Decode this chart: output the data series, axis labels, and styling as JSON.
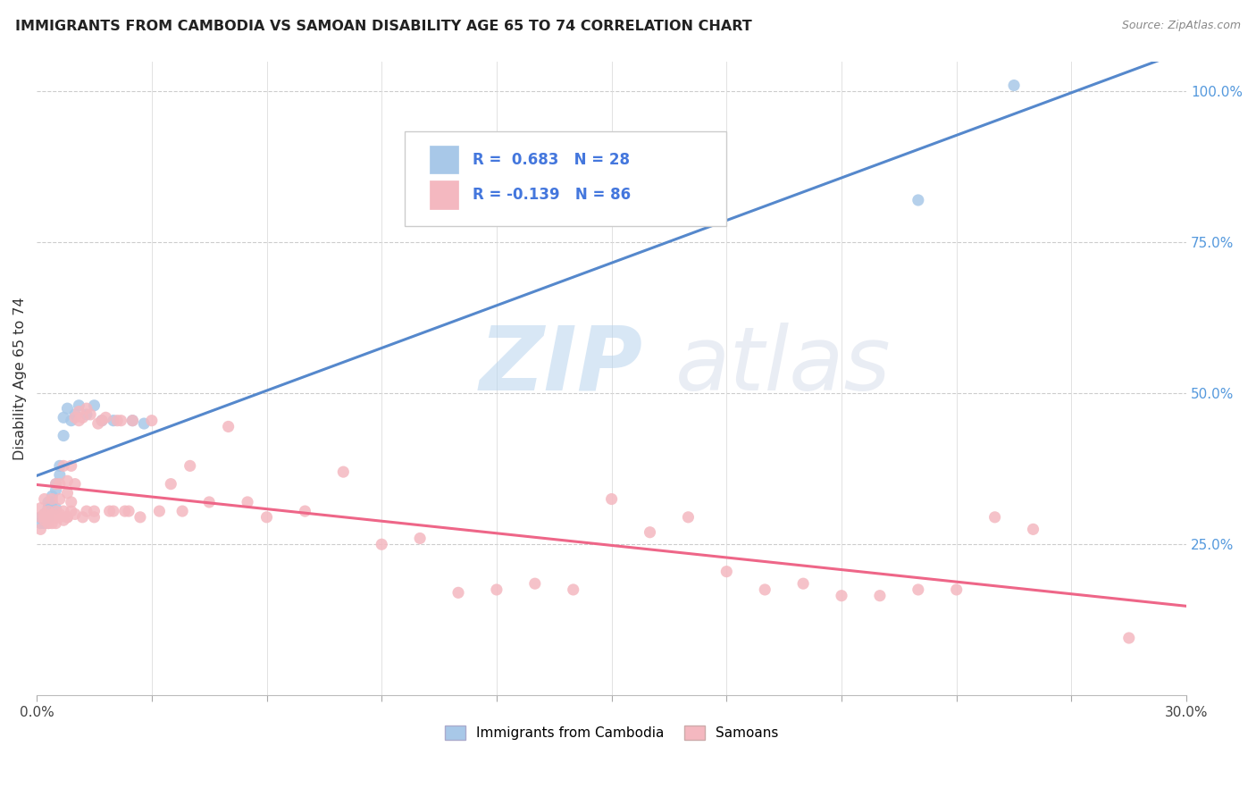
{
  "title": "IMMIGRANTS FROM CAMBODIA VS SAMOAN DISABILITY AGE 65 TO 74 CORRELATION CHART",
  "source": "Source: ZipAtlas.com",
  "ylabel": "Disability Age 65 to 74",
  "legend_cambodia": "Immigrants from Cambodia",
  "legend_samoan": "Samoans",
  "R_cambodia": 0.683,
  "N_cambodia": 28,
  "R_samoan": -0.139,
  "N_samoan": 86,
  "color_cambodia": "#a8c8e8",
  "color_samoan": "#f4b8c0",
  "line_color_cambodia": "#5588cc",
  "line_color_samoan": "#ee6688",
  "watermark_zip": "ZIP",
  "watermark_atlas": "atlas",
  "xlim": [
    0.0,
    0.3
  ],
  "ylim": [
    0.0,
    1.05
  ],
  "right_yticks": [
    0.25,
    0.5,
    0.75,
    1.0
  ],
  "right_yticklabels": [
    "25.0%",
    "50.0%",
    "75.0%",
    "100.0%"
  ],
  "cambodia_x": [
    0.001,
    0.001,
    0.002,
    0.002,
    0.003,
    0.003,
    0.003,
    0.004,
    0.004,
    0.005,
    0.005,
    0.005,
    0.006,
    0.006,
    0.007,
    0.007,
    0.008,
    0.009,
    0.01,
    0.011,
    0.013,
    0.015,
    0.017,
    0.02,
    0.025,
    0.028,
    0.23,
    0.255
  ],
  "cambodia_y": [
    0.285,
    0.295,
    0.3,
    0.285,
    0.31,
    0.32,
    0.295,
    0.33,
    0.32,
    0.35,
    0.34,
    0.31,
    0.365,
    0.38,
    0.43,
    0.46,
    0.475,
    0.455,
    0.465,
    0.48,
    0.465,
    0.48,
    0.455,
    0.455,
    0.455,
    0.45,
    0.82,
    1.01
  ],
  "samoan_x": [
    0.001,
    0.001,
    0.001,
    0.002,
    0.002,
    0.002,
    0.002,
    0.003,
    0.003,
    0.003,
    0.003,
    0.004,
    0.004,
    0.004,
    0.004,
    0.005,
    0.005,
    0.005,
    0.005,
    0.006,
    0.006,
    0.006,
    0.006,
    0.007,
    0.007,
    0.007,
    0.008,
    0.008,
    0.008,
    0.008,
    0.009,
    0.009,
    0.009,
    0.01,
    0.01,
    0.01,
    0.011,
    0.011,
    0.012,
    0.012,
    0.013,
    0.013,
    0.014,
    0.015,
    0.015,
    0.016,
    0.017,
    0.018,
    0.019,
    0.02,
    0.021,
    0.022,
    0.023,
    0.024,
    0.025,
    0.027,
    0.03,
    0.032,
    0.035,
    0.038,
    0.04,
    0.045,
    0.05,
    0.055,
    0.06,
    0.07,
    0.08,
    0.09,
    0.1,
    0.11,
    0.12,
    0.13,
    0.14,
    0.15,
    0.16,
    0.17,
    0.18,
    0.19,
    0.2,
    0.21,
    0.22,
    0.23,
    0.24,
    0.25,
    0.26,
    0.285
  ],
  "samoan_y": [
    0.295,
    0.31,
    0.275,
    0.3,
    0.295,
    0.29,
    0.325,
    0.285,
    0.305,
    0.295,
    0.285,
    0.3,
    0.325,
    0.285,
    0.295,
    0.295,
    0.305,
    0.285,
    0.35,
    0.3,
    0.325,
    0.35,
    0.295,
    0.29,
    0.305,
    0.38,
    0.295,
    0.335,
    0.355,
    0.295,
    0.305,
    0.38,
    0.32,
    0.3,
    0.35,
    0.46,
    0.455,
    0.47,
    0.46,
    0.295,
    0.475,
    0.305,
    0.465,
    0.295,
    0.305,
    0.45,
    0.455,
    0.46,
    0.305,
    0.305,
    0.455,
    0.455,
    0.305,
    0.305,
    0.455,
    0.295,
    0.455,
    0.305,
    0.35,
    0.305,
    0.38,
    0.32,
    0.445,
    0.32,
    0.295,
    0.305,
    0.37,
    0.25,
    0.26,
    0.17,
    0.175,
    0.185,
    0.175,
    0.325,
    0.27,
    0.295,
    0.205,
    0.175,
    0.185,
    0.165,
    0.165,
    0.175,
    0.175,
    0.295,
    0.275,
    0.095
  ]
}
